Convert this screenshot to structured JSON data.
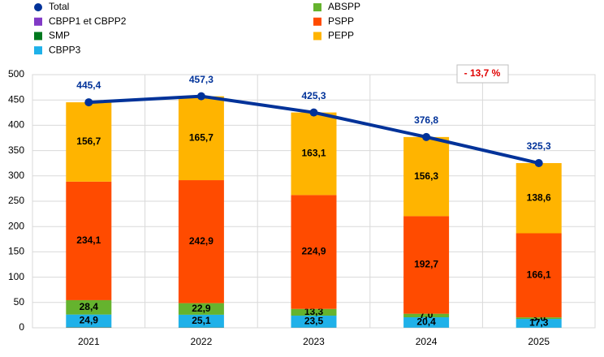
{
  "chart_data": {
    "type": "bar",
    "stacked": true,
    "categories": [
      "2021",
      "2022",
      "2023",
      "2024",
      "2025"
    ],
    "series": [
      {
        "name": "CBPP1 et CBPP2",
        "color": "#8139c6",
        "values": [
          0.5,
          0.3,
          0.2,
          0.2,
          0.1
        ]
      },
      {
        "name": "SMP",
        "color": "#00781e",
        "values": [
          0.8,
          0.4,
          0.3,
          0.2,
          0.2
        ]
      },
      {
        "name": "CBPP3",
        "color": "#1fb1e9",
        "values": [
          24.9,
          25.1,
          23.5,
          20.4,
          17.3
        ],
        "value_labels": [
          "24,9",
          "25,1",
          "23,5",
          "20,4",
          "17,3"
        ]
      },
      {
        "name": "ABSPP",
        "color": "#65b32e",
        "values": [
          28.4,
          22.9,
          13.3,
          7.0,
          3.0
        ],
        "value_labels": [
          "28,4",
          "22,9",
          "13,3",
          "7,0",
          "3,0"
        ]
      },
      {
        "name": "PSPP",
        "color": "#ff4b00",
        "values": [
          234.1,
          242.9,
          224.9,
          192.7,
          166.1
        ],
        "value_labels": [
          "234,1",
          "242,9",
          "224,9",
          "192,7",
          "166,1"
        ]
      },
      {
        "name": "PEPP",
        "color": "#ffb400",
        "values": [
          156.7,
          165.7,
          163.1,
          156.3,
          138.6
        ],
        "value_labels": [
          "156,7",
          "165,7",
          "163,1",
          "156,3",
          "138,6"
        ]
      }
    ],
    "line": {
      "name": "Total",
      "color": "#003299",
      "values": [
        445.4,
        457.3,
        425.3,
        376.8,
        325.3
      ],
      "value_labels": [
        "445,4",
        "457,3",
        "425,3",
        "376,8",
        "325,3"
      ]
    },
    "annotation": "- 13,7 %",
    "ylim": [
      0,
      500
    ],
    "yticks": [
      0,
      50,
      100,
      150,
      200,
      250,
      300,
      350,
      400,
      450,
      500
    ],
    "grid": true
  }
}
